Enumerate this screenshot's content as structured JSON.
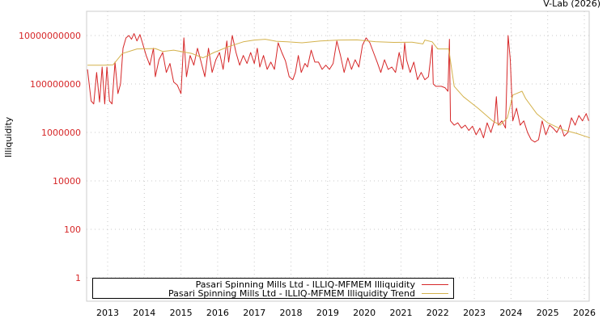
{
  "credit": "V-Lab (2026)",
  "chart_data": {
    "type": "line",
    "title": "",
    "xlabel": "",
    "ylabel": "Illiquidity",
    "yscale": "log",
    "ylim": [
      0.3,
      10000000000000
    ],
    "xlim": [
      2012.45,
      2026.15
    ],
    "y_ticks": [
      {
        "value": 1,
        "label": "1"
      },
      {
        "value": 100,
        "label": "100"
      },
      {
        "value": 10000,
        "label": "10000"
      },
      {
        "value": 1000000,
        "label": "1000000"
      },
      {
        "value": 100000000,
        "label": "100000000"
      },
      {
        "value": 10000000000,
        "label": "10000000000"
      }
    ],
    "x_ticks": [
      "2013",
      "2014",
      "2015",
      "2016",
      "2017",
      "2018",
      "2019",
      "2020",
      "2021",
      "2022",
      "2023",
      "2024",
      "2025",
      "2026"
    ],
    "grid": true,
    "legend_position": "bottom-left",
    "series": [
      {
        "name": "Pasari Spinning Mills Ltd - ILLIQ-MFMEM Illiquidity",
        "color": "#d62728",
        "points": [
          [
            2012.45,
            400000000
          ],
          [
            2012.55,
            20000000
          ],
          [
            2012.62,
            15000000
          ],
          [
            2012.7,
            300000000
          ],
          [
            2012.78,
            18000000
          ],
          [
            2012.85,
            500000000
          ],
          [
            2012.92,
            15000000
          ],
          [
            2012.98,
            500000000
          ],
          [
            2013.05,
            20000000
          ],
          [
            2013.12,
            15000000
          ],
          [
            2013.2,
            800000000
          ],
          [
            2013.28,
            40000000
          ],
          [
            2013.35,
            100000000
          ],
          [
            2013.42,
            3000000000
          ],
          [
            2013.5,
            8000000000
          ],
          [
            2013.58,
            10000000000
          ],
          [
            2013.65,
            7000000000
          ],
          [
            2013.72,
            12000000000
          ],
          [
            2013.8,
            6000000000
          ],
          [
            2013.88,
            11000000000
          ],
          [
            2013.95,
            5000000000
          ],
          [
            2014.05,
            1500000000
          ],
          [
            2014.15,
            600000000
          ],
          [
            2014.25,
            3000000000
          ],
          [
            2014.3,
            200000000
          ],
          [
            2014.4,
            1000000000
          ],
          [
            2014.5,
            2000000000
          ],
          [
            2014.6,
            300000000
          ],
          [
            2014.7,
            700000000
          ],
          [
            2014.8,
            120000000
          ],
          [
            2014.9,
            90000000
          ],
          [
            2015.0,
            40000000
          ],
          [
            2015.08,
            8000000000
          ],
          [
            2015.15,
            200000000
          ],
          [
            2015.25,
            1500000000
          ],
          [
            2015.35,
            600000000
          ],
          [
            2015.45,
            3000000000
          ],
          [
            2015.55,
            800000000
          ],
          [
            2015.65,
            200000000
          ],
          [
            2015.75,
            3000000000
          ],
          [
            2015.85,
            300000000
          ],
          [
            2015.95,
            1000000000
          ],
          [
            2016.05,
            2000000000
          ],
          [
            2016.15,
            400000000
          ],
          [
            2016.25,
            6000000000
          ],
          [
            2016.3,
            800000000
          ],
          [
            2016.4,
            10000000000
          ],
          [
            2016.5,
            2000000000
          ],
          [
            2016.6,
            600000000
          ],
          [
            2016.7,
            1500000000
          ],
          [
            2016.8,
            700000000
          ],
          [
            2016.9,
            2000000000
          ],
          [
            2017.0,
            700000000
          ],
          [
            2017.08,
            3000000000
          ],
          [
            2017.15,
            500000000
          ],
          [
            2017.25,
            1500000000
          ],
          [
            2017.35,
            400000000
          ],
          [
            2017.45,
            800000000
          ],
          [
            2017.55,
            400000000
          ],
          [
            2017.65,
            5000000000
          ],
          [
            2017.75,
            2000000000
          ],
          [
            2017.85,
            900000000
          ],
          [
            2017.95,
            200000000
          ],
          [
            2018.05,
            150000000
          ],
          [
            2018.12,
            300000000
          ],
          [
            2018.2,
            1500000000
          ],
          [
            2018.28,
            300000000
          ],
          [
            2018.38,
            700000000
          ],
          [
            2018.45,
            500000000
          ],
          [
            2018.55,
            2500000000
          ],
          [
            2018.65,
            800000000
          ],
          [
            2018.75,
            800000000
          ],
          [
            2018.85,
            400000000
          ],
          [
            2018.95,
            600000000
          ],
          [
            2019.05,
            400000000
          ],
          [
            2019.15,
            700000000
          ],
          [
            2019.25,
            6000000000
          ],
          [
            2019.35,
            1500000000
          ],
          [
            2019.45,
            300000000
          ],
          [
            2019.55,
            1200000000
          ],
          [
            2019.65,
            400000000
          ],
          [
            2019.75,
            1000000000
          ],
          [
            2019.85,
            500000000
          ],
          [
            2019.95,
            4000000000
          ],
          [
            2020.05,
            8000000000
          ],
          [
            2020.15,
            5000000000
          ],
          [
            2020.25,
            2000000000
          ],
          [
            2020.35,
            800000000
          ],
          [
            2020.45,
            300000000
          ],
          [
            2020.55,
            1000000000
          ],
          [
            2020.65,
            400000000
          ],
          [
            2020.75,
            500000000
          ],
          [
            2020.85,
            300000000
          ],
          [
            2020.95,
            2000000000
          ],
          [
            2021.05,
            400000000
          ],
          [
            2021.1,
            5000000000
          ],
          [
            2021.15,
            1000000000
          ],
          [
            2021.25,
            300000000
          ],
          [
            2021.35,
            800000000
          ],
          [
            2021.45,
            150000000
          ],
          [
            2021.55,
            300000000
          ],
          [
            2021.65,
            150000000
          ],
          [
            2021.75,
            200000000
          ],
          [
            2021.85,
            4000000000
          ],
          [
            2021.88,
            100000000
          ],
          [
            2021.95,
            80000000
          ],
          [
            2022.1,
            80000000
          ],
          [
            2022.2,
            70000000
          ],
          [
            2022.28,
            50000000
          ],
          [
            2022.32,
            7000000000
          ],
          [
            2022.35,
            3000000
          ],
          [
            2022.45,
            2000000
          ],
          [
            2022.55,
            2500000
          ],
          [
            2022.65,
            1500000
          ],
          [
            2022.75,
            2000000
          ],
          [
            2022.85,
            1200000
          ],
          [
            2022.95,
            1800000
          ],
          [
            2023.05,
            800000
          ],
          [
            2023.15,
            1500000
          ],
          [
            2023.25,
            600000
          ],
          [
            2023.35,
            2500000
          ],
          [
            2023.45,
            1000000
          ],
          [
            2023.55,
            3000000
          ],
          [
            2023.6,
            30000000
          ],
          [
            2023.65,
            2000000
          ],
          [
            2023.75,
            3000000
          ],
          [
            2023.85,
            1500000
          ],
          [
            2023.92,
            10000000000
          ],
          [
            2023.98,
            1000000000
          ],
          [
            2024.05,
            3000000
          ],
          [
            2024.15,
            10000000
          ],
          [
            2024.25,
            2000000
          ],
          [
            2024.35,
            3000000
          ],
          [
            2024.45,
            1000000
          ],
          [
            2024.55,
            500000
          ],
          [
            2024.65,
            400000
          ],
          [
            2024.75,
            500000
          ],
          [
            2024.85,
            3000000
          ],
          [
            2024.95,
            800000
          ],
          [
            2025.05,
            2000000
          ],
          [
            2025.15,
            1500000
          ],
          [
            2025.25,
            1000000
          ],
          [
            2025.35,
            2000000
          ],
          [
            2025.45,
            700000
          ],
          [
            2025.55,
            1000000
          ],
          [
            2025.65,
            4000000
          ],
          [
            2025.75,
            2000000
          ],
          [
            2025.85,
            5000000
          ],
          [
            2025.95,
            3000000
          ],
          [
            2026.05,
            6000000
          ],
          [
            2026.12,
            3000000
          ]
        ]
      },
      {
        "name": "Pasari Spinning Mills Ltd - ILLIQ-MFMEM Illiquidity Trend",
        "color": "#d4b24c",
        "points": [
          [
            2012.45,
            600000000
          ],
          [
            2012.9,
            600000000
          ],
          [
            2013.15,
            620000000
          ],
          [
            2013.4,
            1800000000
          ],
          [
            2013.8,
            2800000000
          ],
          [
            2014.3,
            2900000000
          ],
          [
            2014.5,
            2200000000
          ],
          [
            2014.8,
            2500000000
          ],
          [
            2015.3,
            1800000000
          ],
          [
            2015.6,
            1200000000
          ],
          [
            2015.9,
            2000000000
          ],
          [
            2016.3,
            3500000000
          ],
          [
            2016.7,
            5500000000
          ],
          [
            2017.0,
            6500000000
          ],
          [
            2017.3,
            7000000000
          ],
          [
            2017.6,
            5800000000
          ],
          [
            2017.9,
            5500000000
          ],
          [
            2018.3,
            5000000000
          ],
          [
            2018.8,
            6000000000
          ],
          [
            2019.3,
            6500000000
          ],
          [
            2019.8,
            6600000000
          ],
          [
            2020.3,
            5600000000
          ],
          [
            2020.8,
            5200000000
          ],
          [
            2021.3,
            5300000000
          ],
          [
            2021.6,
            4500000000
          ],
          [
            2021.65,
            6500000000
          ],
          [
            2021.85,
            5500000000
          ],
          [
            2022.0,
            2800000000
          ],
          [
            2022.3,
            2800000000
          ],
          [
            2022.45,
            80000000
          ],
          [
            2022.7,
            30000000
          ],
          [
            2023.1,
            10000000
          ],
          [
            2023.5,
            3000000
          ],
          [
            2023.7,
            2000000
          ],
          [
            2023.9,
            4000000
          ],
          [
            2024.05,
            35000000
          ],
          [
            2024.3,
            50000000
          ],
          [
            2024.4,
            25000000
          ],
          [
            2024.7,
            6000000
          ],
          [
            2025.0,
            2500000
          ],
          [
            2025.4,
            1300000
          ],
          [
            2025.8,
            900000
          ],
          [
            2026.15,
            600000
          ]
        ]
      }
    ]
  }
}
